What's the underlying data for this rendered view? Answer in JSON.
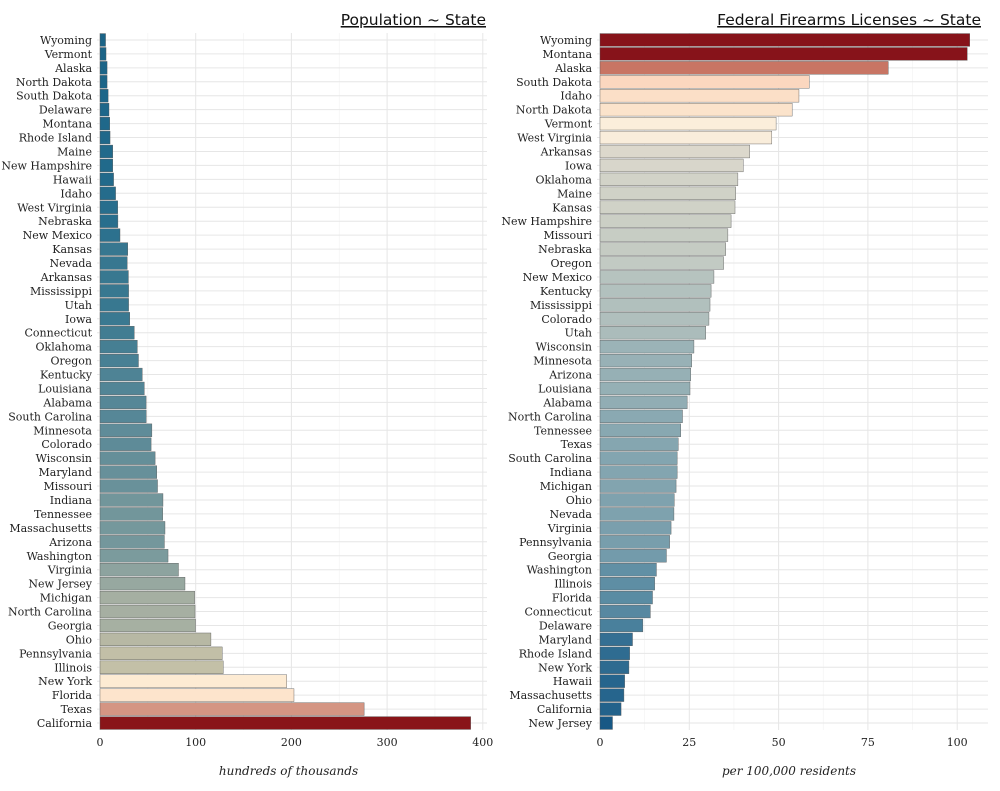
{
  "chart_data": [
    {
      "type": "bar",
      "orientation": "horizontal",
      "title": "Population ~ State",
      "xlabel": "hundreds of thousands",
      "xlim": [
        0,
        400
      ],
      "xticks": [
        0,
        100,
        200,
        300,
        400
      ],
      "grid": true,
      "categories": [
        "Wyoming",
        "Vermont",
        "Alaska",
        "North Dakota",
        "South Dakota",
        "Delaware",
        "Montana",
        "Rhode Island",
        "Maine",
        "New Hampshire",
        "Hawaii",
        "Idaho",
        "West Virginia",
        "Nebraska",
        "New Mexico",
        "Kansas",
        "Nevada",
        "Arkansas",
        "Mississippi",
        "Utah",
        "Iowa",
        "Connecticut",
        "Oklahoma",
        "Oregon",
        "Kentucky",
        "Louisiana",
        "Alabama",
        "South Carolina",
        "Minnesota",
        "Colorado",
        "Wisconsin",
        "Maryland",
        "Missouri",
        "Indiana",
        "Tennessee",
        "Massachusetts",
        "Arizona",
        "Washington",
        "Virginia",
        "New Jersey",
        "Michigan",
        "North Carolina",
        "Georgia",
        "Ohio",
        "Pennsylvania",
        "Illinois",
        "New York",
        "Florida",
        "Texas",
        "California"
      ],
      "values": [
        5.8,
        6.3,
        7.4,
        7.4,
        8.5,
        9.4,
        10.2,
        10.5,
        13.3,
        13.3,
        14.2,
        16.3,
        18.5,
        18.7,
        20.9,
        29.0,
        28.4,
        29.7,
        29.9,
        29.9,
        31.1,
        35.8,
        39.0,
        40.2,
        44.1,
        46.3,
        48.2,
        48.3,
        54.2,
        53.4,
        57.6,
        59.3,
        60.1,
        65.8,
        65.5,
        67.9,
        67.3,
        71.1,
        82.0,
        88.8,
        98.9,
        99.3,
        99.8,
        115.9,
        127.7,
        128.8,
        195.1,
        202.7,
        276.0,
        387.3
      ],
      "colors": [
        "#1b6487",
        "#1b6487",
        "#1c6588",
        "#1c6588",
        "#1d6689",
        "#1e678a",
        "#1f688a",
        "#1f688a",
        "#216a8b",
        "#216a8b",
        "#226a8b",
        "#256c8c",
        "#286e8d",
        "#286e8d",
        "#2c718e",
        "#377790",
        "#377790",
        "#387890",
        "#387890",
        "#387890",
        "#3a7991",
        "#417d92",
        "#467f93",
        "#488094",
        "#4e8395",
        "#528596",
        "#568797",
        "#568797",
        "#5f8c99",
        "#5e8b98",
        "#658f99",
        "#67909a",
        "#69919a",
        "#72969b",
        "#72969b",
        "#75989c",
        "#74979c",
        "#7b9b9d",
        "#8da39f",
        "#97a8a0",
        "#a5afa2",
        "#a6afa2",
        "#a6b0a2",
        "#b7b8a4",
        "#c2bfa7",
        "#c3c0a7",
        "#fdebd3",
        "#fde4cc",
        "#d49583",
        "#891519"
      ]
    },
    {
      "type": "bar",
      "orientation": "horizontal",
      "title": "Federal Firearms Licenses ~ State",
      "xlabel": "per 100,000 residents",
      "xlim": [
        0,
        105
      ],
      "xticks": [
        0,
        25,
        50,
        75,
        100
      ],
      "grid": true,
      "categories": [
        "Wyoming",
        "Montana",
        "Alaska",
        "South Dakota",
        "Idaho",
        "North Dakota",
        "Vermont",
        "West Virginia",
        "Arkansas",
        "Iowa",
        "Oklahoma",
        "Maine",
        "Kansas",
        "New Hampshire",
        "Missouri",
        "Nebraska",
        "Oregon",
        "New Mexico",
        "Kentucky",
        "Mississippi",
        "Colorado",
        "Utah",
        "Wisconsin",
        "Minnesota",
        "Arizona",
        "Louisiana",
        "Alabama",
        "North Carolina",
        "Tennessee",
        "Texas",
        "South Carolina",
        "Indiana",
        "Michigan",
        "Ohio",
        "Nevada",
        "Virginia",
        "Pennsylvania",
        "Georgia",
        "Washington",
        "Illinois",
        "Florida",
        "Connecticut",
        "Delaware",
        "Maryland",
        "Rhode Island",
        "New York",
        "Hawaii",
        "Massachusetts",
        "California",
        "New Jersey"
      ],
      "values": [
        103.5,
        102.8,
        80.7,
        58.6,
        55.7,
        53.8,
        49.3,
        48.1,
        41.9,
        40.1,
        38.6,
        38.0,
        37.8,
        36.7,
        35.8,
        35.2,
        34.6,
        31.9,
        31.1,
        30.8,
        30.5,
        29.6,
        26.3,
        25.7,
        25.4,
        25.2,
        24.4,
        23.1,
        22.6,
        21.9,
        21.6,
        21.6,
        21.3,
        20.8,
        20.7,
        19.9,
        19.5,
        18.6,
        15.8,
        15.3,
        14.7,
        14.1,
        12.0,
        9.1,
        8.3,
        8.1,
        6.9,
        6.7,
        5.9,
        3.5
      ],
      "colors": [
        "#87131a",
        "#87131a",
        "#c87564",
        "#fbd7bf",
        "#fbdfc7",
        "#fbe3cb",
        "#fbeedb",
        "#f9eddb",
        "#dcd8cc",
        "#d8d6cb",
        "#d2d3c8",
        "#d0d2c7",
        "#d0d2c7",
        "#cbcfc5",
        "#c7cdc4",
        "#c5cbc3",
        "#c2cac3",
        "#b6c3bf",
        "#b2c1be",
        "#b1c0bd",
        "#b0bfbd",
        "#abbcbb",
        "#9bb3b7",
        "#98b1b6",
        "#96b0b5",
        "#95b0b5",
        "#91adb4",
        "#8aa9b2",
        "#88a8b1",
        "#85a6b0",
        "#83a5b0",
        "#83a5b0",
        "#82a4af",
        "#7fa2ae",
        "#7ea2ae",
        "#7a9fad",
        "#789eac",
        "#739bab",
        "#6190a5",
        "#5e8ea4",
        "#5a8ca3",
        "#5788a1",
        "#49809c",
        "#346f93",
        "#2f6c91",
        "#2e6b90",
        "#26658d",
        "#26658d",
        "#23628b",
        "#175885"
      ]
    }
  ]
}
